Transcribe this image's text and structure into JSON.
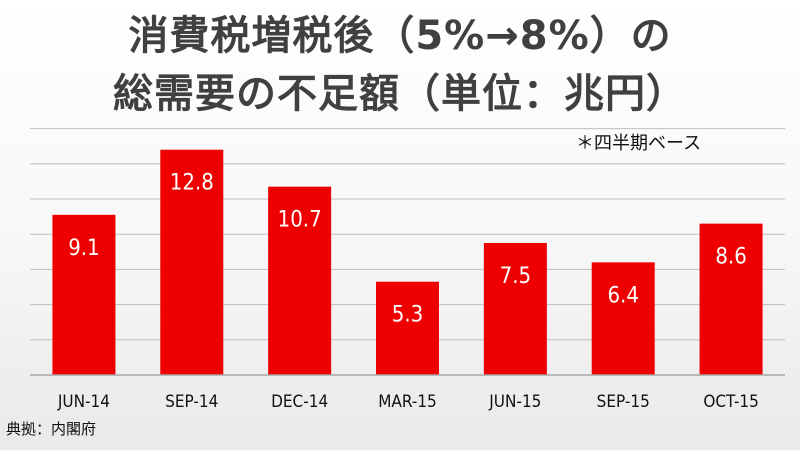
{
  "header": {
    "title_line1": "消費税増税後（5%→8%）の",
    "title_line2": "総需要の不足額（単位：兆円）",
    "note": "＊四半期ベース"
  },
  "footer": {
    "source": "典拠：内閣府"
  },
  "colors": {
    "bar": "#ee0000",
    "gridline": "#bfbfbf",
    "axis": "#a6a6a6",
    "title": "#404040"
  },
  "chart_data": {
    "type": "bar",
    "title": "消費税増税後（5%→8%）の総需要の不足額（単位：兆円）",
    "xlabel": "",
    "ylabel": "",
    "categories": [
      "JUN-14",
      "SEP-14",
      "DEC-14",
      "MAR-15",
      "JUN-15",
      "SEP-15",
      "OCT-15"
    ],
    "values": [
      9.1,
      12.8,
      10.7,
      5.3,
      7.5,
      6.4,
      8.6
    ],
    "value_labels": [
      "9.1",
      "12.8",
      "10.7",
      "5.3",
      "7.5",
      "6.4",
      "8.6"
    ],
    "ylim": [
      0,
      14
    ],
    "y_step": 2,
    "grid": true,
    "legend": "none"
  }
}
